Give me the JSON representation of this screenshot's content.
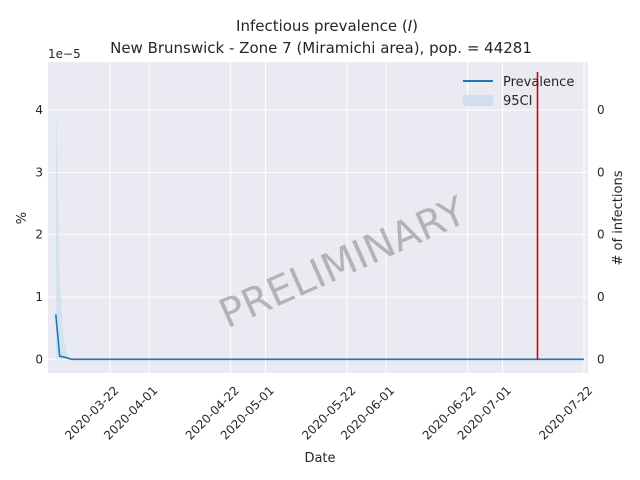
{
  "chart_data": {
    "type": "line",
    "title_line1": "Infectious prevalence (",
    "title_italic": "I",
    "title_line1_end": ")",
    "title_line2": "New Brunswick - Zone 7 (Miramichi area), pop. = 44281",
    "xlabel": "Date",
    "ylabel": "%",
    "ylabel_right": "# of infections",
    "offset_text": "1e−5",
    "watermark": "PRELIMINARY",
    "x_ticks": [
      "2020-03-22",
      "2020-04-01",
      "2020-04-22",
      "2020-05-01",
      "2020-05-22",
      "2020-06-01",
      "2020-06-22",
      "2020-07-01",
      "2020-07-22"
    ],
    "y_ticks": [
      0,
      1,
      2,
      3,
      4
    ],
    "y_ticks_right": [
      "0",
      "0",
      "0",
      "0",
      "0"
    ],
    "xlim": [
      "2020-03-06",
      "2020-07-23"
    ],
    "ylim": [
      -0.22,
      4.77
    ],
    "y_scale_note": "values in units of 1e-5 percent",
    "legend_position": "top-right",
    "grid": true,
    "series": [
      {
        "name": "Prevalence",
        "color": "#1f77b4",
        "x": [
          "2020-03-08",
          "2020-03-09",
          "2020-03-10",
          "2020-03-11",
          "2020-03-12",
          "2020-03-15",
          "2020-03-20",
          "2020-04-01",
          "2020-05-01",
          "2020-06-01",
          "2020-07-01",
          "2020-07-22"
        ],
        "values": [
          0.72,
          0.05,
          0.04,
          0.02,
          0.0,
          0.0,
          0.0,
          0.0,
          0.0,
          0.0,
          0.0,
          0.0
        ]
      }
    ],
    "ci": {
      "name": "95CI",
      "color": "#cfe0ee",
      "x": [
        "2020-03-08",
        "2020-03-09",
        "2020-03-10",
        "2020-03-11",
        "2020-03-12",
        "2020-03-15",
        "2020-07-22"
      ],
      "upper": [
        4.35,
        1.3,
        0.35,
        0.08,
        0.02,
        0.0,
        0.0
      ],
      "lower": [
        0.0,
        0.0,
        0.0,
        0.0,
        0.0,
        0.0,
        0.0
      ]
    },
    "vline": {
      "x": "2020-07-10",
      "color": "#e00000"
    }
  }
}
